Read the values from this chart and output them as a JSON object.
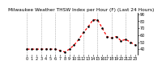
{
  "title": "Milwaukee Weather THSW Index per Hour (F) (Last 24 Hours)",
  "hours": [
    0,
    1,
    2,
    3,
    4,
    5,
    6,
    7,
    8,
    9,
    10,
    11,
    12,
    13,
    14,
    15,
    16,
    17,
    18,
    19,
    20,
    21,
    22,
    23
  ],
  "values": [
    40,
    40,
    40,
    40,
    40,
    40,
    40,
    38,
    36,
    40,
    46,
    54,
    64,
    72,
    82,
    82,
    70,
    58,
    56,
    58,
    52,
    54,
    50,
    46
  ],
  "line_color": "#ff0000",
  "marker_color": "#000000",
  "background_color": "#ffffff",
  "grid_color": "#888888",
  "ylim": [
    32,
    92
  ],
  "ytick_values": [
    40,
    50,
    60,
    70,
    80,
    90
  ],
  "ytick_labels": [
    "40",
    "50",
    "60",
    "70",
    "80",
    "90"
  ],
  "xtick_positions": [
    0,
    1,
    2,
    3,
    4,
    5,
    6,
    7,
    8,
    9,
    10,
    11,
    12,
    13,
    14,
    15,
    16,
    17,
    18,
    19,
    20,
    21,
    22,
    23
  ],
  "xtick_labels": [
    "0",
    "1",
    "2",
    "3",
    "4",
    "5",
    "6",
    "7",
    "8",
    "9",
    "10",
    "11",
    "12",
    "13",
    "14",
    "15",
    "16",
    "17",
    "18",
    "19",
    "20",
    "21",
    "22",
    "23"
  ],
  "vgrid_positions": [
    0,
    3,
    6,
    9,
    12,
    15,
    18,
    21
  ],
  "title_fontsize": 4.2,
  "tick_fontsize": 3.5,
  "line_width": 0.9,
  "marker_size": 1.8
}
